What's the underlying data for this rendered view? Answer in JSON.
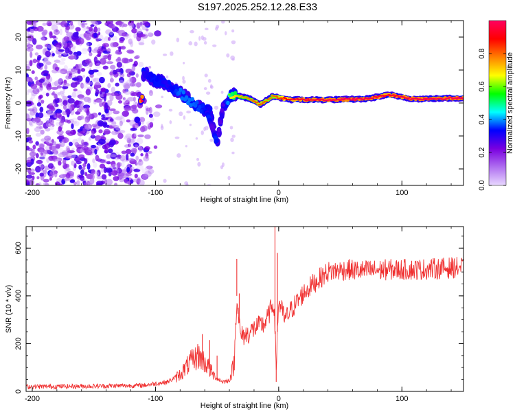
{
  "title": "S197.2025.252.12.28.E33",
  "chart_data": [
    {
      "type": "heatmap",
      "xlabel": "Height of straight line (km)",
      "ylabel": "Frequency (Hz)",
      "xlim": [
        -205,
        150
      ],
      "ylim": [
        -25,
        25
      ],
      "x_ticks": [
        -200,
        -100,
        0,
        100
      ],
      "y_ticks": [
        -20,
        -10,
        0,
        10,
        20
      ],
      "colorbar": {
        "label": "Normalized spectral amplitude",
        "range": [
          0,
          1
        ],
        "ticks": [
          0.0,
          0.2,
          0.4,
          0.6,
          0.8
        ],
        "colors": [
          "#e8d8ff",
          "#b070f0",
          "#7a00e0",
          "#0000ff",
          "#00ffff",
          "#00ff00",
          "#ffff00",
          "#ff8000",
          "#ff0000",
          "#ff0060"
        ]
      },
      "noise_region": {
        "x": [
          -205,
          -95
        ],
        "y": [
          -25,
          25
        ],
        "amplitude": [
          0.0,
          0.3
        ]
      },
      "ridge": [
        {
          "x": -110,
          "y": 9,
          "amp": 0.35
        },
        {
          "x": -100,
          "y": 7,
          "amp": 0.4
        },
        {
          "x": -90,
          "y": 6,
          "amp": 0.35
        },
        {
          "x": -80,
          "y": 3,
          "amp": 0.45
        },
        {
          "x": -70,
          "y": 0,
          "amp": 0.45
        },
        {
          "x": -60,
          "y": -2,
          "amp": 0.4
        },
        {
          "x": -55,
          "y": -3,
          "amp": 0.35
        },
        {
          "x": -50,
          "y": -12,
          "amp": 0.3
        },
        {
          "x": -45,
          "y": -1,
          "amp": 0.3
        },
        {
          "x": -38,
          "y": 2.5,
          "amp": 0.6
        },
        {
          "x": -25,
          "y": 1.5,
          "amp": 0.7
        },
        {
          "x": -15,
          "y": -0.5,
          "amp": 0.75
        },
        {
          "x": -5,
          "y": 2,
          "amp": 0.7
        },
        {
          "x": 10,
          "y": 1,
          "amp": 0.85
        },
        {
          "x": 40,
          "y": 1,
          "amp": 0.9
        },
        {
          "x": 70,
          "y": 1.2,
          "amp": 0.9
        },
        {
          "x": 90,
          "y": 2.5,
          "amp": 0.85
        },
        {
          "x": 110,
          "y": 1.2,
          "amp": 0.9
        },
        {
          "x": 150,
          "y": 1.5,
          "amp": 0.9
        }
      ]
    },
    {
      "type": "line",
      "xlabel": "Height of straight line (km)",
      "ylabel": "SNR (10 * v/v)",
      "xlim": [
        -205,
        150
      ],
      "ylim": [
        0,
        690
      ],
      "x_ticks": [
        -200,
        -100,
        0,
        100
      ],
      "y_ticks": [
        0,
        200,
        400,
        600
      ],
      "color": "#f03030",
      "series": [
        {
          "name": "SNR",
          "points": [
            [
              -205,
              20
            ],
            [
              -150,
              22
            ],
            [
              -110,
              25
            ],
            [
              -90,
              40
            ],
            [
              -80,
              70
            ],
            [
              -72,
              120
            ],
            [
              -65,
              150
            ],
            [
              -58,
              110
            ],
            [
              -52,
              60
            ],
            [
              -45,
              40
            ],
            [
              -40,
              45
            ],
            [
              -36,
              120
            ],
            [
              -34,
              400
            ],
            [
              -31,
              230
            ],
            [
              -25,
              240
            ],
            [
              -18,
              270
            ],
            [
              -12,
              280
            ],
            [
              -8,
              320
            ],
            [
              -4,
              380
            ],
            [
              -2,
              120
            ],
            [
              0,
              380
            ],
            [
              5,
              300
            ],
            [
              10,
              340
            ],
            [
              20,
              410
            ],
            [
              30,
              460
            ],
            [
              40,
              500
            ],
            [
              55,
              510
            ],
            [
              70,
              505
            ],
            [
              90,
              510
            ],
            [
              110,
              510
            ],
            [
              130,
              515
            ],
            [
              150,
              520
            ]
          ],
          "spikes": [
            [
              -62,
              240
            ],
            [
              -56,
              215
            ],
            [
              -50,
              150
            ],
            [
              -34,
              555
            ],
            [
              -32,
              410
            ],
            [
              -3,
              690
            ],
            [
              -1,
              580
            ],
            [
              -2,
              40
            ]
          ]
        }
      ]
    }
  ]
}
